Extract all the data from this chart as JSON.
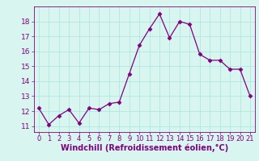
{
  "x": [
    0,
    1,
    2,
    3,
    4,
    5,
    6,
    7,
    8,
    9,
    10,
    11,
    12,
    13,
    14,
    15,
    16,
    17,
    18,
    19,
    20,
    21
  ],
  "y": [
    12.2,
    11.1,
    11.7,
    12.1,
    11.2,
    12.2,
    12.1,
    12.5,
    12.6,
    14.5,
    16.4,
    17.5,
    18.5,
    16.9,
    18.0,
    17.8,
    15.8,
    15.4,
    15.4,
    14.8,
    14.8,
    13.0
  ],
  "line_color": "#800080",
  "marker": "D",
  "marker_size": 2.5,
  "xlabel": "Windchill (Refroidissement éolien,°C)",
  "xlabel_color": "#800080",
  "xlabel_fontsize": 7,
  "tick_fontsize": 6.5,
  "tick_color": "#800080",
  "background_color": "#d8f5f0",
  "grid_color": "#b0e0d8",
  "ylim": [
    10.6,
    19.0
  ],
  "xlim": [
    -0.5,
    21.5
  ],
  "yticks": [
    11,
    12,
    13,
    14,
    15,
    16,
    17,
    18
  ],
  "xticks": [
    0,
    1,
    2,
    3,
    4,
    5,
    6,
    7,
    8,
    9,
    10,
    11,
    12,
    13,
    14,
    15,
    16,
    17,
    18,
    19,
    20,
    21
  ]
}
